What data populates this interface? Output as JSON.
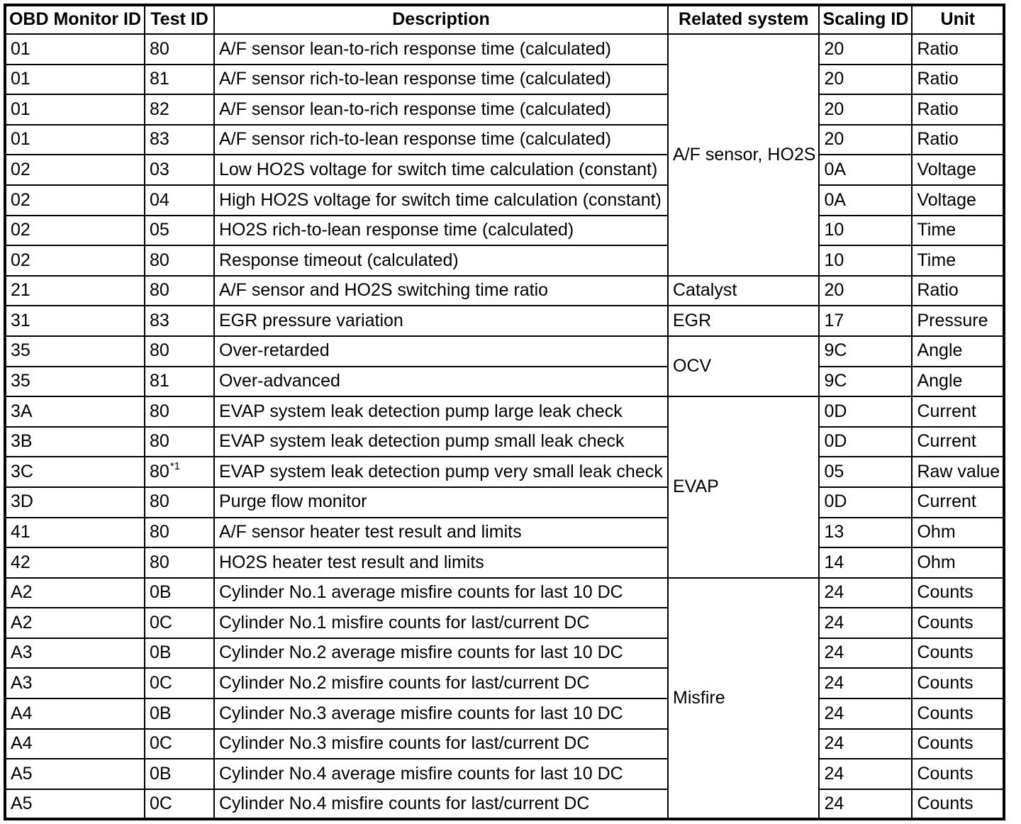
{
  "colors": {
    "background": "#ffffff",
    "text": "#000000",
    "border": "#000000"
  },
  "table": {
    "headers": [
      "OBD Monitor ID",
      "Test ID",
      "Description",
      "Related system",
      "Scaling ID",
      "Unit"
    ],
    "rows": [
      {
        "monitor_id": "01",
        "test_id": "80",
        "description": "A/F sensor lean-to-rich response time (calculated)",
        "related": {
          "label": "A/F sensor, HO2S",
          "rowspan": 8
        },
        "scaling_id": "20",
        "unit": "Ratio"
      },
      {
        "monitor_id": "01",
        "test_id": "81",
        "description": "A/F sensor rich-to-lean response time (calculated)",
        "scaling_id": "20",
        "unit": "Ratio"
      },
      {
        "monitor_id": "01",
        "test_id": "82",
        "description": "A/F sensor lean-to-rich response time (calculated)",
        "scaling_id": "20",
        "unit": "Ratio"
      },
      {
        "monitor_id": "01",
        "test_id": "83",
        "description": "A/F sensor rich-to-lean response time (calculated)",
        "scaling_id": "20",
        "unit": "Ratio"
      },
      {
        "monitor_id": "02",
        "test_id": "03",
        "description": "Low HO2S voltage for switch time calculation (constant)",
        "scaling_id": "0A",
        "unit": "Voltage"
      },
      {
        "monitor_id": "02",
        "test_id": "04",
        "description": "High HO2S voltage for switch time calculation (constant)",
        "scaling_id": "0A",
        "unit": "Voltage"
      },
      {
        "monitor_id": "02",
        "test_id": "05",
        "description": "HO2S rich-to-lean response time (calculated)",
        "scaling_id": "10",
        "unit": "Time"
      },
      {
        "monitor_id": "02",
        "test_id": "80",
        "description": "Response timeout (calculated)",
        "scaling_id": "10",
        "unit": "Time"
      },
      {
        "monitor_id": "21",
        "test_id": "80",
        "description": "A/F sensor and HO2S switching time ratio",
        "related": {
          "label": "Catalyst",
          "rowspan": 1
        },
        "scaling_id": "20",
        "unit": "Ratio"
      },
      {
        "monitor_id": "31",
        "test_id": "83",
        "description": "EGR pressure variation",
        "related": {
          "label": "EGR",
          "rowspan": 1
        },
        "scaling_id": "17",
        "unit": "Pressure"
      },
      {
        "monitor_id": "35",
        "test_id": "80",
        "description": "Over-retarded",
        "related": {
          "label": "OCV",
          "rowspan": 2
        },
        "scaling_id": "9C",
        "unit": "Angle"
      },
      {
        "monitor_id": "35",
        "test_id": "81",
        "description": "Over-advanced",
        "scaling_id": "9C",
        "unit": "Angle"
      },
      {
        "monitor_id": "3A",
        "test_id": "80",
        "description": "EVAP system leak detection pump large leak check",
        "related": {
          "label": "EVAP",
          "rowspan": 6
        },
        "scaling_id": "0D",
        "unit": "Current"
      },
      {
        "monitor_id": "3B",
        "test_id": "80",
        "description": "EVAP system leak detection pump small leak check",
        "scaling_id": "0D",
        "unit": "Current"
      },
      {
        "monitor_id": "3C",
        "test_id": "80",
        "test_id_note": "*1",
        "description": "EVAP system leak detection pump very small leak check",
        "scaling_id": "05",
        "unit": "Raw value"
      },
      {
        "monitor_id": "3D",
        "test_id": "80",
        "description": "Purge flow monitor",
        "scaling_id": "0D",
        "unit": "Current"
      },
      {
        "monitor_id": "41",
        "test_id": "80",
        "description": "A/F sensor heater test result and limits",
        "scaling_id": "13",
        "unit": "Ohm"
      },
      {
        "monitor_id": "42",
        "test_id": "80",
        "description": "HO2S heater test result and limits",
        "scaling_id": "14",
        "unit": "Ohm"
      },
      {
        "monitor_id": "A2",
        "test_id": "0B",
        "description": "Cylinder No.1 average misfire counts for last 10 DC",
        "related": {
          "label": "Misfire",
          "rowspan": 8
        },
        "scaling_id": "24",
        "unit": "Counts"
      },
      {
        "monitor_id": "A2",
        "test_id": "0C",
        "description": "Cylinder No.1 misfire counts for last/current DC",
        "scaling_id": "24",
        "unit": "Counts"
      },
      {
        "monitor_id": "A3",
        "test_id": "0B",
        "description": "Cylinder No.2 average misfire counts for last 10 DC",
        "scaling_id": "24",
        "unit": "Counts"
      },
      {
        "monitor_id": "A3",
        "test_id": "0C",
        "description": "Cylinder No.2 misfire counts for last/current DC",
        "scaling_id": "24",
        "unit": "Counts"
      },
      {
        "monitor_id": "A4",
        "test_id": "0B",
        "description": "Cylinder No.3 average misfire counts for last 10 DC",
        "scaling_id": "24",
        "unit": "Counts"
      },
      {
        "monitor_id": "A4",
        "test_id": "0C",
        "description": "Cylinder No.3 misfire counts for last/current DC",
        "scaling_id": "24",
        "unit": "Counts"
      },
      {
        "monitor_id": "A5",
        "test_id": "0B",
        "description": "Cylinder No.4 average misfire counts for last 10 DC",
        "scaling_id": "24",
        "unit": "Counts"
      },
      {
        "monitor_id": "A5",
        "test_id": "0C",
        "description": "Cylinder No.4 misfire counts for last/current DC",
        "scaling_id": "24",
        "unit": "Counts"
      }
    ]
  }
}
